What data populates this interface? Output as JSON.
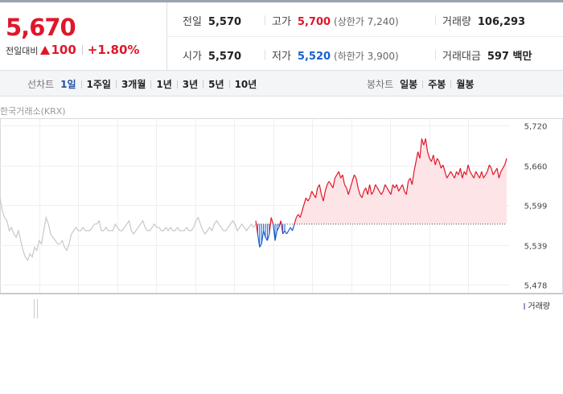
{
  "summary": {
    "price": "5,670",
    "change_label": "전일대비",
    "change_value": "100",
    "change_rate": "+1.80%",
    "prev_close_label": "전일",
    "prev_close": "5,570",
    "open_label": "시가",
    "open": "5,570",
    "high_label": "고가",
    "high": "5,700",
    "upper_limit": "(상한가 7,240)",
    "low_label": "저가",
    "low": "5,520",
    "lower_limit": "(하한가 3,900)",
    "volume_label": "거래량",
    "volume": "106,293",
    "amount_label": "거래대금",
    "amount": "597 백만"
  },
  "line_tabs": {
    "head": "선차트",
    "items": [
      "1일",
      "1주일",
      "3개월",
      "1년",
      "3년",
      "5년",
      "10년"
    ],
    "active": "1일"
  },
  "candle_tabs": {
    "head": "봉차트",
    "items": [
      "일봉",
      "주봉",
      "월봉"
    ]
  },
  "colors": {
    "up": "#e0162b",
    "down": "#1a5fd0",
    "neutral": "#c8c8c8",
    "volume": "#a98fd6"
  },
  "chart_data": {
    "type": "line",
    "source": "한국거래소(KRX)",
    "reference": 5570,
    "ylim": [
      5478,
      5720
    ],
    "yticks": [
      "5,720",
      "5,660",
      "5,599",
      "5,539",
      "5,478"
    ],
    "prev_day_values": [
      5610,
      5590,
      5580,
      5575,
      5560,
      5565,
      5555,
      5550,
      5560,
      5545,
      5530,
      5520,
      5515,
      5525,
      5520,
      5535,
      5530,
      5545,
      5540,
      5560,
      5580,
      5570,
      5555,
      5550,
      5545,
      5540,
      5540,
      5545,
      5535,
      5530,
      5540,
      5555,
      5560,
      5565,
      5560,
      5560,
      5565,
      5560,
      5560,
      5560,
      5565,
      5570,
      5570,
      5575,
      5560,
      5560,
      5565,
      5560,
      5560,
      5560,
      5570,
      5565,
      5560,
      5560,
      5565,
      5570,
      5575,
      5560,
      5555,
      5560,
      5565,
      5570,
      5575,
      5565,
      5560,
      5560,
      5565,
      5570,
      5565,
      5565,
      5560,
      5560,
      5565,
      5560,
      5565,
      5560,
      5560,
      5565,
      5560,
      5560,
      5560,
      5565,
      5560,
      5560,
      5565,
      5575,
      5580,
      5570,
      5560,
      5555,
      5560,
      5565,
      5560,
      5570,
      5575,
      5570,
      5565,
      5560,
      5560,
      5565,
      5570,
      5575,
      5570,
      5560,
      5565,
      5570,
      5565,
      5560,
      5565,
      5570,
      5565,
      5570
    ],
    "today_values": [
      5575,
      5555,
      5535,
      5540,
      5560,
      5550,
      5545,
      5555,
      5580,
      5570,
      5545,
      5560,
      5565,
      5575,
      5555,
      5560,
      5555,
      5560,
      5565,
      5560,
      5570,
      5580,
      5585,
      5580,
      5590,
      5600,
      5610,
      5605,
      5610,
      5620,
      5615,
      5610,
      5625,
      5630,
      5615,
      5605,
      5620,
      5630,
      5635,
      5630,
      5625,
      5640,
      5645,
      5650,
      5640,
      5645,
      5630,
      5625,
      5615,
      5625,
      5635,
      5645,
      5640,
      5625,
      5615,
      5610,
      5620,
      5625,
      5615,
      5630,
      5615,
      5620,
      5630,
      5625,
      5620,
      5615,
      5620,
      5630,
      5625,
      5620,
      5615,
      5630,
      5625,
      5630,
      5620,
      5625,
      5630,
      5620,
      5615,
      5635,
      5640,
      5630,
      5650,
      5665,
      5680,
      5670,
      5700,
      5690,
      5700,
      5680,
      5670,
      5665,
      5675,
      5660,
      5670,
      5665,
      5655,
      5660,
      5650,
      5640,
      5645,
      5650,
      5645,
      5640,
      5650,
      5645,
      5655,
      5640,
      5650,
      5645,
      5660,
      5650,
      5645,
      5640,
      5650,
      5645,
      5640,
      5650,
      5640,
      5645,
      5650,
      5660,
      5655,
      5645,
      5650,
      5655,
      5640,
      5650,
      5655,
      5660,
      5670
    ],
    "volume_label": "거래량"
  }
}
